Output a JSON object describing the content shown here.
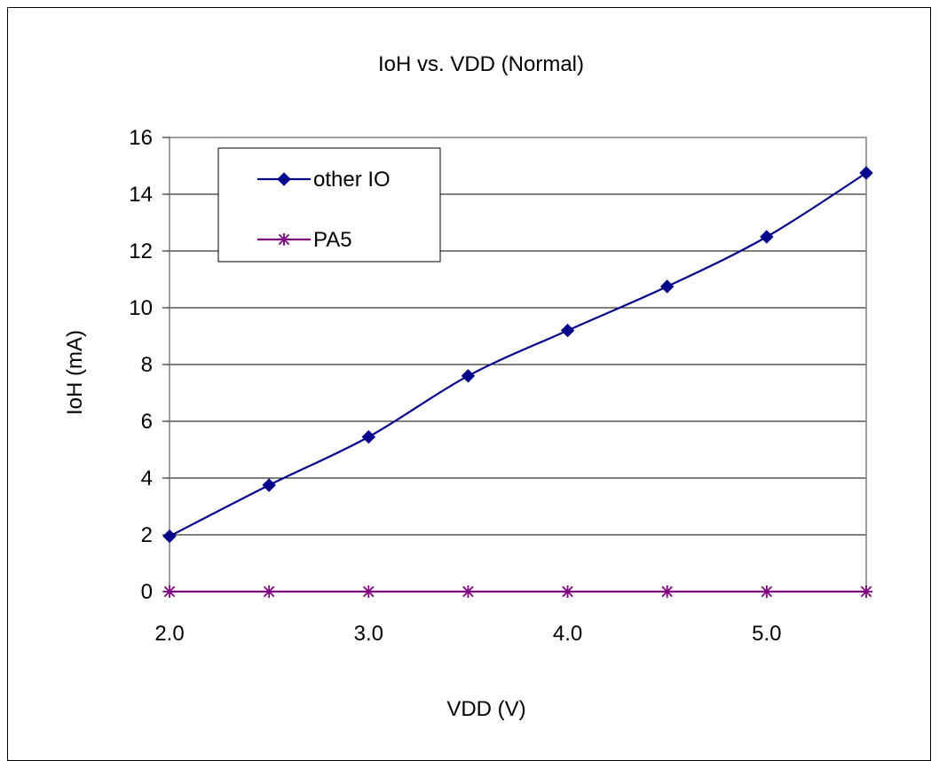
{
  "chart_data": {
    "type": "line",
    "title": "IoH vs. VDD (Normal)",
    "xlabel": "VDD (V)",
    "ylabel": "IoH (mA)",
    "xlim": [
      2.0,
      5.5
    ],
    "ylim": [
      0,
      16
    ],
    "xticks": [
      "2.0",
      "3.0",
      "4.0",
      "5.0"
    ],
    "yticks": [
      "0",
      "2",
      "4",
      "6",
      "8",
      "10",
      "12",
      "14",
      "16"
    ],
    "grid": "horizontal",
    "legend_position": "top-left",
    "x": [
      2.0,
      2.5,
      3.0,
      3.5,
      4.0,
      4.5,
      5.0,
      5.5
    ],
    "series": [
      {
        "name": "other IO",
        "values": [
          1.95,
          3.75,
          5.45,
          7.6,
          9.2,
          10.75,
          12.5,
          14.75
        ],
        "color": "#00008B",
        "marker": "diamond"
      },
      {
        "name": "PA5",
        "values": [
          0,
          0,
          0,
          0,
          0,
          0,
          0,
          0
        ],
        "color": "#800080",
        "marker": "asterisk"
      }
    ]
  }
}
